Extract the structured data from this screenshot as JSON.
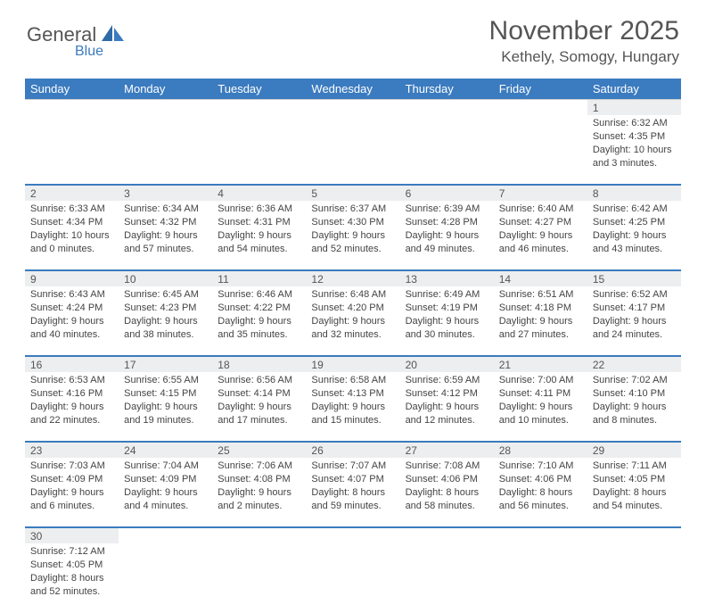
{
  "logo": {
    "word1": "General",
    "word2": "Blue"
  },
  "title": "November 2025",
  "location": "Kethely, Somogy, Hungary",
  "colors": {
    "header_bg": "#3b7bbf",
    "header_text": "#ffffff",
    "daynum_bg": "#eceeef",
    "row_divider": "#3b7bbf",
    "text": "#444444",
    "title_text": "#555555"
  },
  "weekdays": [
    "Sunday",
    "Monday",
    "Tuesday",
    "Wednesday",
    "Thursday",
    "Friday",
    "Saturday"
  ],
  "weeks": [
    {
      "nums": [
        "",
        "",
        "",
        "",
        "",
        "",
        "1"
      ],
      "cells": [
        "",
        "",
        "",
        "",
        "",
        "",
        "Sunrise: 6:32 AM\nSunset: 4:35 PM\nDaylight: 10 hours and 3 minutes."
      ]
    },
    {
      "nums": [
        "2",
        "3",
        "4",
        "5",
        "6",
        "7",
        "8"
      ],
      "cells": [
        "Sunrise: 6:33 AM\nSunset: 4:34 PM\nDaylight: 10 hours and 0 minutes.",
        "Sunrise: 6:34 AM\nSunset: 4:32 PM\nDaylight: 9 hours and 57 minutes.",
        "Sunrise: 6:36 AM\nSunset: 4:31 PM\nDaylight: 9 hours and 54 minutes.",
        "Sunrise: 6:37 AM\nSunset: 4:30 PM\nDaylight: 9 hours and 52 minutes.",
        "Sunrise: 6:39 AM\nSunset: 4:28 PM\nDaylight: 9 hours and 49 minutes.",
        "Sunrise: 6:40 AM\nSunset: 4:27 PM\nDaylight: 9 hours and 46 minutes.",
        "Sunrise: 6:42 AM\nSunset: 4:25 PM\nDaylight: 9 hours and 43 minutes."
      ]
    },
    {
      "nums": [
        "9",
        "10",
        "11",
        "12",
        "13",
        "14",
        "15"
      ],
      "cells": [
        "Sunrise: 6:43 AM\nSunset: 4:24 PM\nDaylight: 9 hours and 40 minutes.",
        "Sunrise: 6:45 AM\nSunset: 4:23 PM\nDaylight: 9 hours and 38 minutes.",
        "Sunrise: 6:46 AM\nSunset: 4:22 PM\nDaylight: 9 hours and 35 minutes.",
        "Sunrise: 6:48 AM\nSunset: 4:20 PM\nDaylight: 9 hours and 32 minutes.",
        "Sunrise: 6:49 AM\nSunset: 4:19 PM\nDaylight: 9 hours and 30 minutes.",
        "Sunrise: 6:51 AM\nSunset: 4:18 PM\nDaylight: 9 hours and 27 minutes.",
        "Sunrise: 6:52 AM\nSunset: 4:17 PM\nDaylight: 9 hours and 24 minutes."
      ]
    },
    {
      "nums": [
        "16",
        "17",
        "18",
        "19",
        "20",
        "21",
        "22"
      ],
      "cells": [
        "Sunrise: 6:53 AM\nSunset: 4:16 PM\nDaylight: 9 hours and 22 minutes.",
        "Sunrise: 6:55 AM\nSunset: 4:15 PM\nDaylight: 9 hours and 19 minutes.",
        "Sunrise: 6:56 AM\nSunset: 4:14 PM\nDaylight: 9 hours and 17 minutes.",
        "Sunrise: 6:58 AM\nSunset: 4:13 PM\nDaylight: 9 hours and 15 minutes.",
        "Sunrise: 6:59 AM\nSunset: 4:12 PM\nDaylight: 9 hours and 12 minutes.",
        "Sunrise: 7:00 AM\nSunset: 4:11 PM\nDaylight: 9 hours and 10 minutes.",
        "Sunrise: 7:02 AM\nSunset: 4:10 PM\nDaylight: 9 hours and 8 minutes."
      ]
    },
    {
      "nums": [
        "23",
        "24",
        "25",
        "26",
        "27",
        "28",
        "29"
      ],
      "cells": [
        "Sunrise: 7:03 AM\nSunset: 4:09 PM\nDaylight: 9 hours and 6 minutes.",
        "Sunrise: 7:04 AM\nSunset: 4:09 PM\nDaylight: 9 hours and 4 minutes.",
        "Sunrise: 7:06 AM\nSunset: 4:08 PM\nDaylight: 9 hours and 2 minutes.",
        "Sunrise: 7:07 AM\nSunset: 4:07 PM\nDaylight: 8 hours and 59 minutes.",
        "Sunrise: 7:08 AM\nSunset: 4:06 PM\nDaylight: 8 hours and 58 minutes.",
        "Sunrise: 7:10 AM\nSunset: 4:06 PM\nDaylight: 8 hours and 56 minutes.",
        "Sunrise: 7:11 AM\nSunset: 4:05 PM\nDaylight: 8 hours and 54 minutes."
      ]
    },
    {
      "nums": [
        "30",
        "",
        "",
        "",
        "",
        "",
        ""
      ],
      "cells": [
        "Sunrise: 7:12 AM\nSunset: 4:05 PM\nDaylight: 8 hours and 52 minutes.",
        "",
        "",
        "",
        "",
        "",
        ""
      ]
    }
  ]
}
